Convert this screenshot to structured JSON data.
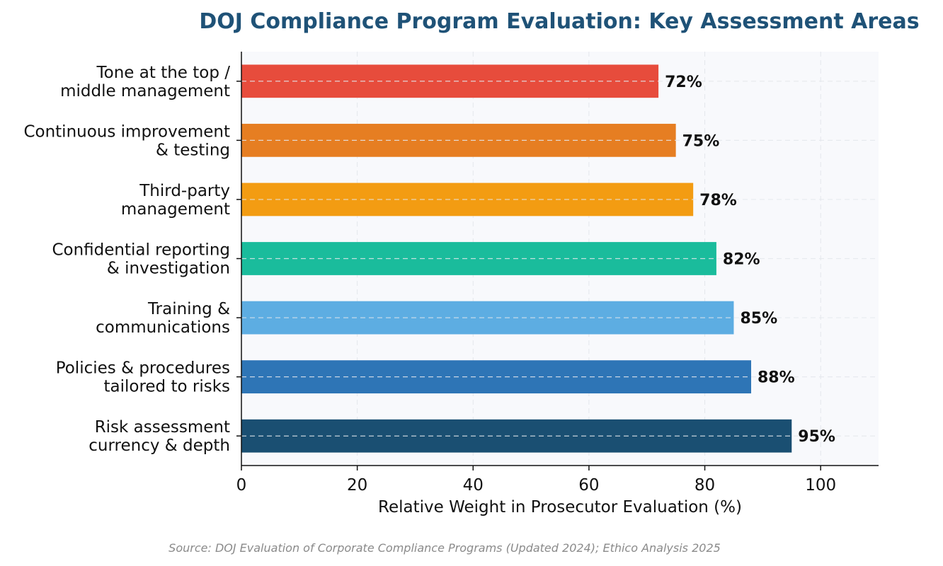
{
  "chart_data": {
    "type": "bar",
    "orientation": "horizontal",
    "title": "DOJ Compliance Program Evaluation: Key Assessment Areas",
    "xlabel": "Relative Weight in Prosecutor Evaluation (%)",
    "ylabel": "",
    "xlim": [
      0,
      110
    ],
    "xticks": [
      0,
      20,
      40,
      60,
      80,
      100
    ],
    "grid": true,
    "categories": [
      [
        "Tone at the top /",
        "middle management"
      ],
      [
        "Continuous improvement",
        "& testing"
      ],
      [
        "Third-party",
        "management"
      ],
      [
        "Confidential reporting",
        "& investigation"
      ],
      [
        "Training &",
        "communications"
      ],
      [
        "Policies & procedures",
        "tailored to risks"
      ],
      [
        "Risk assessment",
        "currency & depth"
      ]
    ],
    "values": [
      72,
      75,
      78,
      82,
      85,
      88,
      95
    ],
    "value_labels": [
      "72%",
      "75%",
      "78%",
      "82%",
      "85%",
      "88%",
      "95%"
    ],
    "colors": [
      "#e74c3c",
      "#e67e22",
      "#f39c12",
      "#1abc9c",
      "#5dade2",
      "#2e75b6",
      "#1a4f72"
    ],
    "source": "Source: DOJ Evaluation of Corporate Compliance Programs (Updated 2024); Ethico Analysis 2025"
  }
}
